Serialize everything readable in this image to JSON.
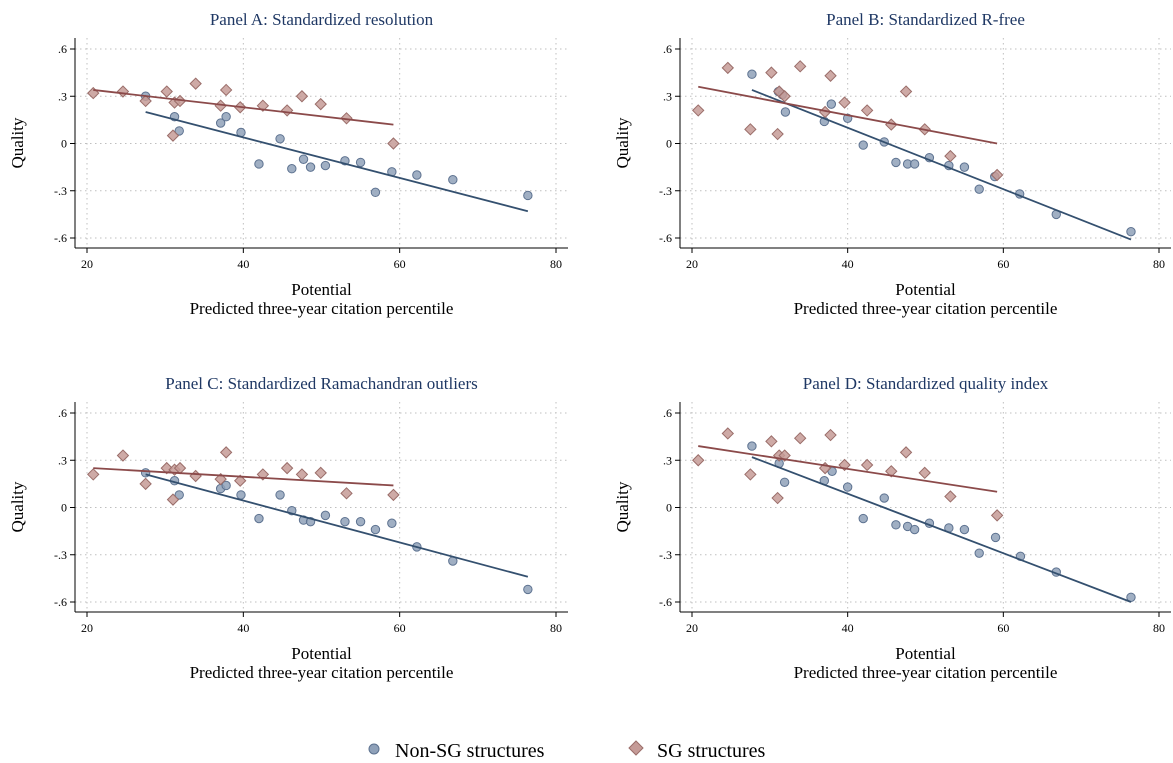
{
  "legend": {
    "items": [
      {
        "label": "Non-SG structures",
        "marker": "circle",
        "color": "#8fa1b9"
      },
      {
        "label": "SG structures",
        "marker": "diamond",
        "color": "#c59b97"
      }
    ]
  },
  "colors": {
    "non_sg_fill": "#8fa1b9",
    "non_sg_stroke": "#5d7290",
    "non_sg_line": "#34506f",
    "sg_fill": "#c59b97",
    "sg_stroke": "#9a6d69",
    "sg_line": "#8b4a4a",
    "title": "#1f3864"
  },
  "chart_data": [
    {
      "type": "scatter",
      "title": "Panel A: Standardized resolution",
      "xlabel": "Potential",
      "xlabel2": "Predicted three-year citation percentile",
      "ylabel": "Quality",
      "xlim": [
        20,
        80
      ],
      "ylim": [
        -0.6,
        0.6
      ],
      "xticks": [
        "20",
        "40",
        "60",
        "80"
      ],
      "xtick_values": [
        20,
        40,
        60,
        80
      ],
      "yticks": [
        ".6",
        ".3",
        "0",
        "-.3",
        "-.6"
      ],
      "ytick_values": [
        0.6,
        0.3,
        0,
        -0.3,
        -0.6
      ],
      "grid": true,
      "series": [
        {
          "name": "Non-SG structures",
          "marker": "circle",
          "points": [
            [
              27.5,
              0.3
            ],
            [
              31.2,
              0.17
            ],
            [
              31.8,
              0.08
            ],
            [
              37.1,
              0.13
            ],
            [
              37.8,
              0.17
            ],
            [
              39.7,
              0.07
            ],
            [
              42.0,
              -0.13
            ],
            [
              44.7,
              0.03
            ],
            [
              46.2,
              -0.16
            ],
            [
              47.7,
              -0.1
            ],
            [
              48.6,
              -0.15
            ],
            [
              50.5,
              -0.14
            ],
            [
              53.0,
              -0.11
            ],
            [
              55.0,
              -0.12
            ],
            [
              56.9,
              -0.31
            ],
            [
              59.0,
              -0.18
            ],
            [
              62.2,
              -0.2
            ],
            [
              66.8,
              -0.23
            ],
            [
              76.4,
              -0.33
            ]
          ],
          "fit": [
            [
              27.5,
              0.2
            ],
            [
              76.4,
              -0.43
            ]
          ]
        },
        {
          "name": "SG structures",
          "marker": "diamond",
          "points": [
            [
              20.8,
              0.32
            ],
            [
              24.6,
              0.33
            ],
            [
              27.5,
              0.27
            ],
            [
              30.2,
              0.33
            ],
            [
              31.0,
              0.05
            ],
            [
              31.2,
              0.26
            ],
            [
              31.9,
              0.27
            ],
            [
              33.9,
              0.38
            ],
            [
              37.1,
              0.24
            ],
            [
              37.8,
              0.34
            ],
            [
              39.6,
              0.23
            ],
            [
              42.5,
              0.24
            ],
            [
              45.6,
              0.21
            ],
            [
              47.5,
              0.3
            ],
            [
              49.9,
              0.25
            ],
            [
              53.2,
              0.16
            ],
            [
              59.2,
              0.0
            ]
          ],
          "fit": [
            [
              20.8,
              0.34
            ],
            [
              59.2,
              0.12
            ]
          ]
        }
      ]
    },
    {
      "type": "scatter",
      "title": "Panel B: Standardized R-free",
      "xlabel": "Potential",
      "xlabel2": "Predicted three-year citation percentile",
      "ylabel": "Quality",
      "xlim": [
        20,
        80
      ],
      "ylim": [
        -0.6,
        0.6
      ],
      "xticks": [
        "20",
        "40",
        "60",
        "80"
      ],
      "xtick_values": [
        20,
        40,
        60,
        80
      ],
      "yticks": [
        ".6",
        ".3",
        "0",
        "-.3",
        "-.6"
      ],
      "ytick_values": [
        0.6,
        0.3,
        0,
        -0.3,
        -0.6
      ],
      "grid": true,
      "series": [
        {
          "name": "Non-SG structures",
          "marker": "circle",
          "points": [
            [
              27.7,
              0.44
            ],
            [
              31.1,
              0.33
            ],
            [
              31.6,
              0.31
            ],
            [
              32.0,
              0.2
            ],
            [
              37.0,
              0.14
            ],
            [
              37.9,
              0.25
            ],
            [
              40.0,
              0.16
            ],
            [
              42.0,
              -0.01
            ],
            [
              44.7,
              0.01
            ],
            [
              46.2,
              -0.12
            ],
            [
              47.7,
              -0.13
            ],
            [
              48.6,
              -0.13
            ],
            [
              50.5,
              -0.09
            ],
            [
              53.0,
              -0.14
            ],
            [
              55.0,
              -0.15
            ],
            [
              56.9,
              -0.29
            ],
            [
              58.9,
              -0.21
            ],
            [
              62.1,
              -0.32
            ],
            [
              66.8,
              -0.45
            ],
            [
              76.4,
              -0.56
            ]
          ],
          "fit": [
            [
              27.7,
              0.34
            ],
            [
              76.4,
              -0.61
            ]
          ]
        },
        {
          "name": "SG structures",
          "marker": "diamond",
          "points": [
            [
              20.8,
              0.21
            ],
            [
              24.6,
              0.48
            ],
            [
              27.5,
              0.09
            ],
            [
              30.2,
              0.45
            ],
            [
              31.0,
              0.06
            ],
            [
              31.2,
              0.33
            ],
            [
              31.9,
              0.3
            ],
            [
              33.9,
              0.49
            ],
            [
              37.1,
              0.2
            ],
            [
              37.8,
              0.43
            ],
            [
              39.6,
              0.26
            ],
            [
              42.5,
              0.21
            ],
            [
              45.6,
              0.12
            ],
            [
              47.5,
              0.33
            ],
            [
              49.9,
              0.09
            ],
            [
              53.2,
              -0.08
            ],
            [
              59.2,
              -0.2
            ]
          ],
          "fit": [
            [
              20.8,
              0.36
            ],
            [
              59.2,
              0.0
            ]
          ]
        }
      ]
    },
    {
      "type": "scatter",
      "title": "Panel C: Standardized Ramachandran outliers",
      "xlabel": "Potential",
      "xlabel2": "Predicted three-year citation percentile",
      "ylabel": "Quality",
      "xlim": [
        20,
        80
      ],
      "ylim": [
        -0.6,
        0.6
      ],
      "xticks": [
        "20",
        "40",
        "60",
        "80"
      ],
      "xtick_values": [
        20,
        40,
        60,
        80
      ],
      "yticks": [
        ".6",
        ".3",
        "0",
        "-.3",
        "-.6"
      ],
      "ytick_values": [
        0.6,
        0.3,
        0,
        -0.3,
        -0.6
      ],
      "grid": true,
      "series": [
        {
          "name": "Non-SG structures",
          "marker": "circle",
          "points": [
            [
              27.5,
              0.22
            ],
            [
              31.2,
              0.17
            ],
            [
              31.8,
              0.08
            ],
            [
              37.1,
              0.12
            ],
            [
              37.8,
              0.14
            ],
            [
              39.7,
              0.08
            ],
            [
              42.0,
              -0.07
            ],
            [
              44.7,
              0.08
            ],
            [
              46.2,
              -0.02
            ],
            [
              47.7,
              -0.08
            ],
            [
              48.6,
              -0.09
            ],
            [
              50.5,
              -0.05
            ],
            [
              53.0,
              -0.09
            ],
            [
              55.0,
              -0.09
            ],
            [
              56.9,
              -0.14
            ],
            [
              59.0,
              -0.1
            ],
            [
              62.2,
              -0.25
            ],
            [
              66.8,
              -0.34
            ],
            [
              76.4,
              -0.52
            ]
          ],
          "fit": [
            [
              27.5,
              0.21
            ],
            [
              76.4,
              -0.44
            ]
          ]
        },
        {
          "name": "SG structures",
          "marker": "diamond",
          "points": [
            [
              20.8,
              0.21
            ],
            [
              24.6,
              0.33
            ],
            [
              27.5,
              0.15
            ],
            [
              30.2,
              0.25
            ],
            [
              31.0,
              0.05
            ],
            [
              31.2,
              0.24
            ],
            [
              31.9,
              0.25
            ],
            [
              33.9,
              0.2
            ],
            [
              37.1,
              0.18
            ],
            [
              37.8,
              0.35
            ],
            [
              39.6,
              0.17
            ],
            [
              42.5,
              0.21
            ],
            [
              45.6,
              0.25
            ],
            [
              47.5,
              0.21
            ],
            [
              49.9,
              0.22
            ],
            [
              53.2,
              0.09
            ],
            [
              59.2,
              0.08
            ]
          ],
          "fit": [
            [
              20.8,
              0.25
            ],
            [
              59.2,
              0.14
            ]
          ]
        }
      ]
    },
    {
      "type": "scatter",
      "title": "Panel D: Standardized quality index",
      "xlabel": "Potential",
      "xlabel2": "Predicted three-year citation percentile",
      "ylabel": "Quality",
      "xlim": [
        20,
        80
      ],
      "ylim": [
        -0.6,
        0.6
      ],
      "xticks": [
        "20",
        "40",
        "60",
        "80"
      ],
      "xtick_values": [
        20,
        40,
        60,
        80
      ],
      "yticks": [
        ".6",
        ".3",
        "0",
        "-.3",
        "-.6"
      ],
      "ytick_values": [
        0.6,
        0.3,
        0,
        -0.3,
        -0.6
      ],
      "grid": true,
      "series": [
        {
          "name": "Non-SG structures",
          "marker": "circle",
          "points": [
            [
              27.7,
              0.39
            ],
            [
              31.2,
              0.28
            ],
            [
              31.9,
              0.16
            ],
            [
              37.0,
              0.17
            ],
            [
              38.0,
              0.23
            ],
            [
              40.0,
              0.13
            ],
            [
              42.0,
              -0.07
            ],
            [
              44.7,
              0.06
            ],
            [
              46.2,
              -0.11
            ],
            [
              47.7,
              -0.12
            ],
            [
              48.6,
              -0.14
            ],
            [
              50.5,
              -0.1
            ],
            [
              53.0,
              -0.13
            ],
            [
              55.0,
              -0.14
            ],
            [
              56.9,
              -0.29
            ],
            [
              59.0,
              -0.19
            ],
            [
              62.2,
              -0.31
            ],
            [
              66.8,
              -0.41
            ],
            [
              76.4,
              -0.57
            ]
          ],
          "fit": [
            [
              27.7,
              0.32
            ],
            [
              76.4,
              -0.6
            ]
          ]
        },
        {
          "name": "SG structures",
          "marker": "diamond",
          "points": [
            [
              20.8,
              0.3
            ],
            [
              24.6,
              0.47
            ],
            [
              27.5,
              0.21
            ],
            [
              30.2,
              0.42
            ],
            [
              31.0,
              0.06
            ],
            [
              31.2,
              0.33
            ],
            [
              31.9,
              0.33
            ],
            [
              33.9,
              0.44
            ],
            [
              37.1,
              0.25
            ],
            [
              37.8,
              0.46
            ],
            [
              39.6,
              0.27
            ],
            [
              42.5,
              0.27
            ],
            [
              45.6,
              0.23
            ],
            [
              47.5,
              0.35
            ],
            [
              49.9,
              0.22
            ],
            [
              53.2,
              0.07
            ],
            [
              59.2,
              -0.05
            ]
          ],
          "fit": [
            [
              20.8,
              0.39
            ],
            [
              59.2,
              0.1
            ]
          ]
        }
      ]
    }
  ]
}
